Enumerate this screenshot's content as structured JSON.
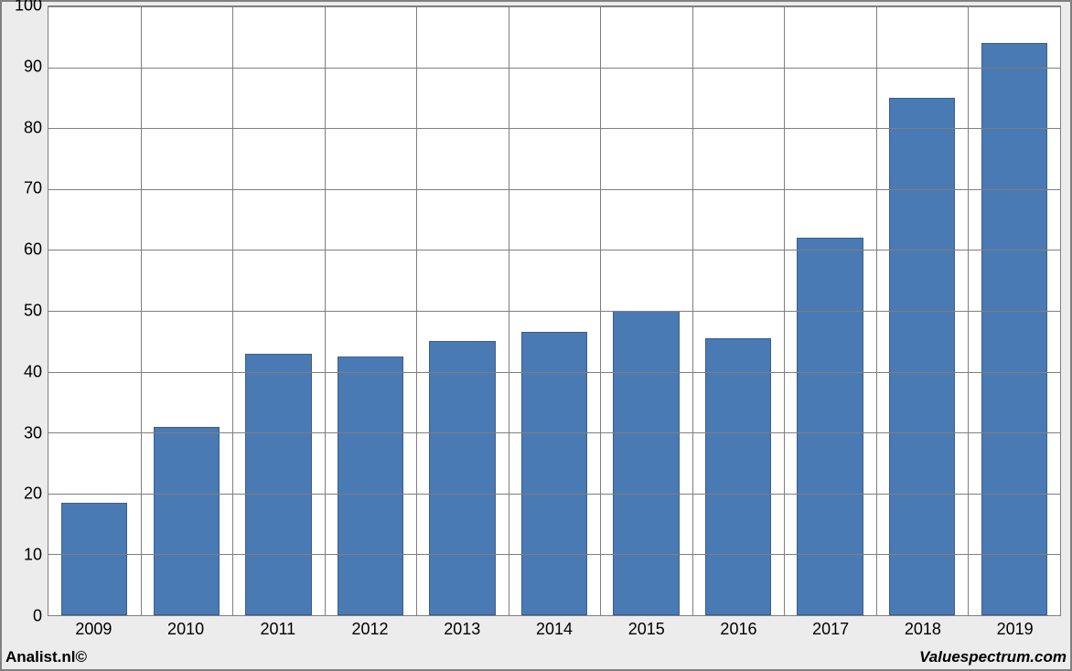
{
  "chart": {
    "type": "bar",
    "background_color": "#ffffff",
    "outer_background_color": "#ececec",
    "border_color": "#808080",
    "grid_color": "#7f7f7f",
    "bar_color": "#4a7ab3",
    "bar_border_color": "#3a5e8c",
    "bar_width_ratio": 0.72,
    "ylim": [
      0,
      100
    ],
    "ytick_step": 10,
    "yticks": [
      "0",
      "10",
      "20",
      "30",
      "40",
      "50",
      "60",
      "70",
      "80",
      "90",
      "100"
    ],
    "categories": [
      "2009",
      "2010",
      "2011",
      "2012",
      "2013",
      "2014",
      "2015",
      "2016",
      "2017",
      "2018",
      "2019"
    ],
    "values": [
      18.5,
      31,
      43,
      42.5,
      45,
      46.5,
      50,
      45.5,
      62,
      85,
      94
    ],
    "label_fontsize": 18,
    "label_color": "#000000"
  },
  "footer": {
    "left": "Analist.nl©",
    "right": "Valuespectrum.com"
  }
}
